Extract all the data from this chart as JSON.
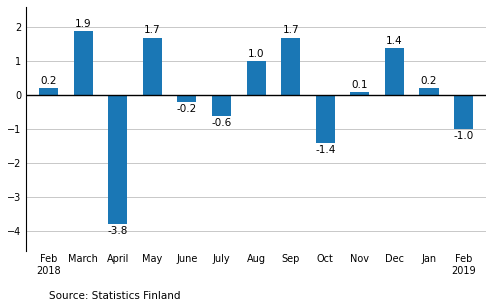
{
  "categories": [
    "Feb\n2018",
    "March",
    "April",
    "May",
    "June",
    "July",
    "Aug",
    "Sep",
    "Oct",
    "Nov",
    "Dec",
    "Jan",
    "Feb\n2019"
  ],
  "values": [
    0.2,
    1.9,
    -3.8,
    1.7,
    -0.2,
    -0.6,
    1.0,
    1.7,
    -1.4,
    0.1,
    1.4,
    0.2,
    -1.0
  ],
  "bar_color": "#1a77b5",
  "ylim": [
    -4.6,
    2.6
  ],
  "yticks": [
    -4,
    -3,
    -2,
    -1,
    0,
    1,
    2
  ],
  "source_text": "Source: Statistics Finland",
  "background_color": "#ffffff",
  "grid_color": "#c8c8c8",
  "label_fontsize": 7.5,
  "tick_fontsize": 7.0,
  "source_fontsize": 7.5,
  "bar_width": 0.55
}
